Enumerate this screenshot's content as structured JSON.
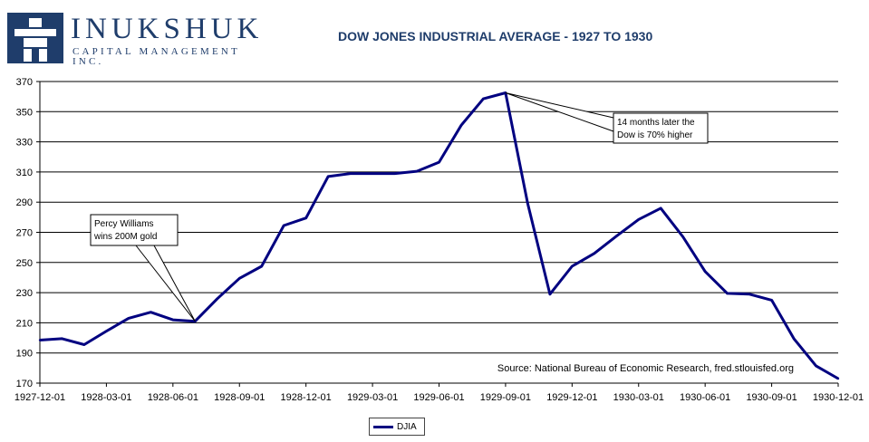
{
  "logo": {
    "name": "INUKSHUK",
    "subtitle": "CAPITAL MANAGEMENT INC.",
    "icon": "inukshuk-icon"
  },
  "colors": {
    "line": "#000080",
    "brand": "#1f3d6b",
    "grid": "#000000"
  },
  "chart_data": {
    "type": "line",
    "title": "DOW JONES INDUSTRIAL AVERAGE - 1927 TO 1930",
    "xlabel": "",
    "ylabel": "",
    "ylim": [
      170,
      370
    ],
    "yticks": [
      170,
      190,
      210,
      230,
      250,
      270,
      290,
      310,
      330,
      350,
      370
    ],
    "xticks": [
      "1927-12-01",
      "1928-03-01",
      "1928-06-01",
      "1928-09-01",
      "1928-12-01",
      "1929-03-01",
      "1929-06-01",
      "1929-09-01",
      "1929-12-01",
      "1930-03-01",
      "1930-06-01",
      "1930-09-01",
      "1930-12-01"
    ],
    "grid": "horizontal",
    "legend_position": "bottom",
    "series": [
      {
        "name": "DJIA",
        "x": [
          "1927-12-01",
          "1928-01-01",
          "1928-02-01",
          "1928-03-01",
          "1928-04-01",
          "1928-05-01",
          "1928-06-01",
          "1928-07-01",
          "1928-08-01",
          "1928-09-01",
          "1928-10-01",
          "1928-11-01",
          "1928-12-01",
          "1929-01-01",
          "1929-02-01",
          "1929-03-01",
          "1929-04-01",
          "1929-05-01",
          "1929-06-01",
          "1929-07-01",
          "1929-08-01",
          "1929-09-01",
          "1929-10-01",
          "1929-11-01",
          "1929-12-01",
          "1930-01-01",
          "1930-02-01",
          "1930-03-01",
          "1930-04-01",
          "1930-05-01",
          "1930-06-01",
          "1930-07-01",
          "1930-08-01",
          "1930-09-01",
          "1930-10-01",
          "1930-11-01",
          "1930-12-01"
        ],
        "values": [
          198.5,
          199.5,
          195.5,
          204.5,
          213,
          217,
          212,
          211,
          226,
          239.5,
          247.5,
          274.5,
          279.5,
          307,
          309,
          309,
          309,
          310.5,
          316.5,
          341,
          358.5,
          362.5,
          289,
          229,
          247.5,
          256,
          267.5,
          278.5,
          286,
          267,
          244,
          229.5,
          229,
          225,
          199.5,
          181.5,
          173
        ]
      }
    ],
    "annotations": [
      {
        "text": "Percy Williams\nwins 200M gold",
        "x": "1928-07-01",
        "y": 211
      },
      {
        "text": "14 months later the\nDow is 70% higher",
        "x": "1929-09-01",
        "y": 362.5
      }
    ],
    "source": "Source: National Bureau of Economic Research, fred.stlouisfed.org"
  }
}
